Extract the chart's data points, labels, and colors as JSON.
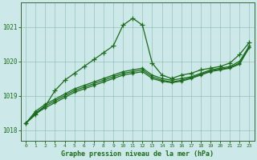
{
  "background_color": "#cde8e8",
  "grid_color": "#88bbaa",
  "line_color": "#1a6b1a",
  "xlim": [
    -0.5,
    23.5
  ],
  "ylim": [
    1017.7,
    1021.7
  ],
  "yticks": [
    1018,
    1019,
    1020,
    1021
  ],
  "xticks": [
    0,
    1,
    2,
    3,
    4,
    5,
    6,
    7,
    8,
    9,
    10,
    11,
    12,
    13,
    14,
    15,
    16,
    17,
    18,
    19,
    20,
    21,
    22,
    23
  ],
  "xlabel": "Graphe pression niveau de la mer (hPa)",
  "series": [
    [
      1018.2,
      1018.45,
      1018.7,
      1019.15,
      1019.45,
      1019.65,
      1019.85,
      1020.05,
      1020.25,
      1020.45,
      1021.05,
      1021.25,
      1021.05,
      1019.95,
      1019.6,
      1019.5,
      1019.6,
      1019.65,
      1019.75,
      1019.8,
      1019.85,
      1019.95,
      1020.2,
      1020.55
    ],
    [
      1018.2,
      1018.55,
      1018.75,
      1018.9,
      1019.05,
      1019.2,
      1019.3,
      1019.4,
      1019.5,
      1019.6,
      1019.7,
      1019.75,
      1019.8,
      1019.6,
      1019.5,
      1019.45,
      1019.5,
      1019.55,
      1019.65,
      1019.75,
      1019.8,
      1019.85,
      1020.0,
      1020.45
    ],
    [
      1018.2,
      1018.5,
      1018.7,
      1018.85,
      1019.0,
      1019.15,
      1019.25,
      1019.35,
      1019.45,
      1019.55,
      1019.65,
      1019.7,
      1019.75,
      1019.55,
      1019.45,
      1019.4,
      1019.45,
      1019.52,
      1019.62,
      1019.72,
      1019.77,
      1019.82,
      1019.95,
      1020.42
    ],
    [
      1018.2,
      1018.48,
      1018.65,
      1018.8,
      1018.95,
      1019.1,
      1019.2,
      1019.3,
      1019.4,
      1019.5,
      1019.6,
      1019.65,
      1019.7,
      1019.5,
      1019.42,
      1019.38,
      1019.42,
      1019.5,
      1019.6,
      1019.7,
      1019.75,
      1019.8,
      1019.92,
      1020.4
    ]
  ]
}
